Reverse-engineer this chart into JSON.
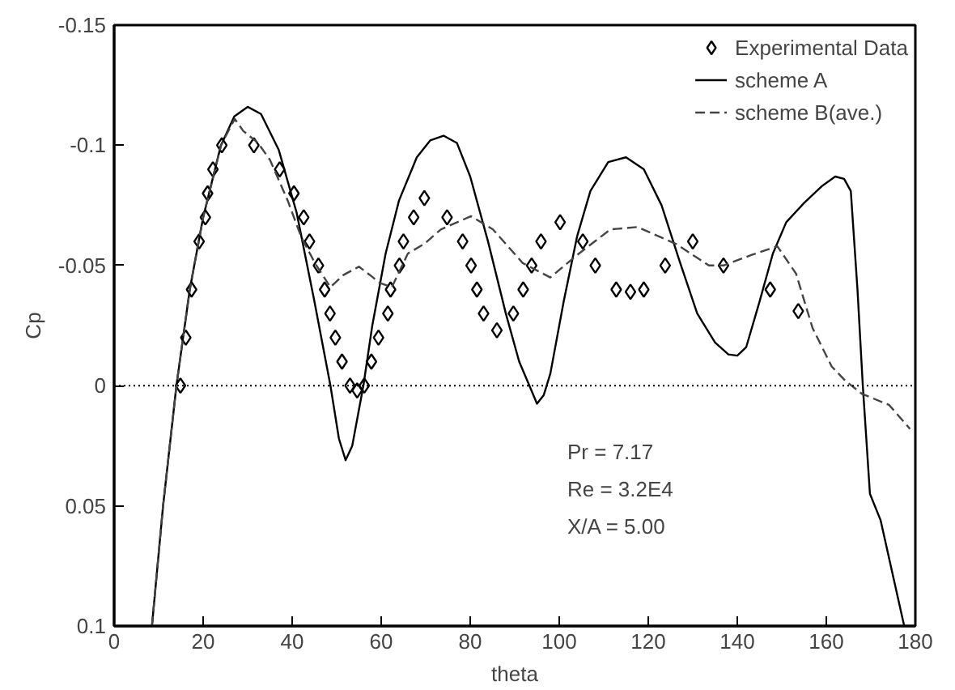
{
  "chart_data": {
    "type": "line",
    "xlabel": "theta",
    "ylabel": "Cp",
    "xlim": [
      0,
      180
    ],
    "ylim": [
      0.1,
      -0.15
    ],
    "xticks": [
      0,
      20,
      40,
      60,
      80,
      100,
      120,
      140,
      160,
      180
    ],
    "yticks": [
      -0.15,
      -0.1,
      -0.05,
      0,
      0.05,
      0.1
    ],
    "grid": false,
    "legend": "top right",
    "ref_lines": [
      {
        "axis": "y",
        "value": 0,
        "line_style": "dotted",
        "color": "#000000"
      }
    ],
    "annotations": [
      "Pr    = 7.17",
      "Re    = 3.2E4",
      "X/A   = 5.00"
    ],
    "series": [
      {
        "name": "Experimental Data",
        "type": "scatter",
        "marker": "diamond",
        "color": "#000000",
        "x": [
          14.9,
          16.1,
          17.4,
          19.1,
          20.5,
          21.0,
          22.2,
          24.2,
          31.4,
          37.2,
          40.4,
          42.6,
          43.9,
          45.9,
          47.3,
          48.5,
          49.7,
          51.2,
          53.0,
          54.6,
          56.2,
          57.8,
          59.4,
          61.5,
          62.1,
          64.1,
          65.0,
          67.3,
          69.7,
          74.8,
          78.3,
          80.2,
          81.5,
          83.0,
          86.0,
          89.7,
          91.9,
          93.8,
          95.9,
          100.2,
          105.3,
          108.1,
          112.8,
          116.0,
          119.0,
          123.8,
          130.0,
          136.9,
          147.4,
          153.7
        ],
        "values": [
          0,
          -0.02,
          -0.04,
          -0.06,
          -0.07,
          -0.08,
          -0.09,
          -0.1,
          -0.1,
          -0.09,
          -0.08,
          -0.07,
          -0.06,
          -0.05,
          -0.04,
          -0.03,
          -0.02,
          -0.01,
          0,
          0.002,
          0,
          -0.01,
          -0.02,
          -0.03,
          -0.04,
          -0.05,
          -0.06,
          -0.07,
          -0.078,
          -0.07,
          -0.06,
          -0.05,
          -0.04,
          -0.03,
          -0.023,
          -0.03,
          -0.04,
          -0.05,
          -0.06,
          -0.068,
          -0.06,
          -0.05,
          -0.04,
          -0.039,
          -0.04,
          -0.05,
          -0.06,
          -0.05,
          -0.04,
          -0.031
        ]
      },
      {
        "name": "scheme A",
        "line_style": "solid",
        "color": "#000000",
        "x": [
          8.5,
          11,
          14,
          17,
          20,
          24,
          27,
          30,
          33,
          37,
          41,
          45,
          48.6,
          50.5,
          52,
          53.5,
          56,
          58,
          61,
          64,
          68,
          71,
          74,
          77,
          80,
          84,
          88,
          91,
          93.3,
          95,
          96.5,
          98,
          101,
          104,
          107,
          111,
          115,
          119,
          123,
          127,
          131,
          135,
          138,
          140,
          142,
          145,
          148,
          151,
          155,
          159,
          162,
          164,
          165.5,
          167,
          168.2,
          169.8,
          172.2,
          177.5
        ],
        "values": [
          0.1,
          0.05,
          0,
          -0.04,
          -0.07,
          -0.1,
          -0.112,
          -0.116,
          -0.113,
          -0.098,
          -0.072,
          -0.035,
          0,
          0.022,
          0.031,
          0.025,
          0,
          -0.025,
          -0.055,
          -0.077,
          -0.095,
          -0.102,
          -0.104,
          -0.101,
          -0.087,
          -0.06,
          -0.03,
          -0.01,
          0,
          0.0075,
          0.004,
          -0.005,
          -0.035,
          -0.062,
          -0.081,
          -0.093,
          -0.095,
          -0.09,
          -0.075,
          -0.052,
          -0.03,
          -0.018,
          -0.013,
          -0.0125,
          -0.016,
          -0.035,
          -0.055,
          -0.068,
          -0.076,
          -0.083,
          -0.087,
          -0.086,
          -0.081,
          -0.04,
          0,
          0.045,
          0.056,
          0.1
        ]
      },
      {
        "name": "scheme B(ave.)",
        "line_style": "dashed",
        "color": "#444444",
        "x": [
          8.5,
          11,
          14,
          17,
          20,
          24,
          27.1,
          29,
          32.3,
          35,
          39,
          42,
          45.2,
          48.6,
          51.5,
          55,
          57.5,
          59.7,
          62.4,
          66,
          69.7,
          73.4,
          80.2,
          85.1,
          91.8,
          98,
          104.1,
          111.5,
          117.6,
          126.2,
          133.6,
          136.9,
          143.4,
          149,
          153.2,
          156.9,
          161.2,
          164.3,
          168,
          174.1,
          178.8
        ],
        "values": [
          0.1,
          0.05,
          0,
          -0.04,
          -0.07,
          -0.1,
          -0.111,
          -0.106,
          -0.101,
          -0.094,
          -0.077,
          -0.062,
          -0.0507,
          -0.041,
          -0.046,
          -0.0495,
          -0.046,
          -0.0427,
          -0.041,
          -0.055,
          -0.059,
          -0.065,
          -0.0705,
          -0.065,
          -0.051,
          -0.045,
          -0.0545,
          -0.065,
          -0.066,
          -0.059,
          -0.05,
          -0.05,
          -0.0545,
          -0.058,
          -0.0466,
          -0.024,
          -0.008,
          -0.002,
          0.0034,
          0.008,
          0.018
        ]
      }
    ]
  }
}
